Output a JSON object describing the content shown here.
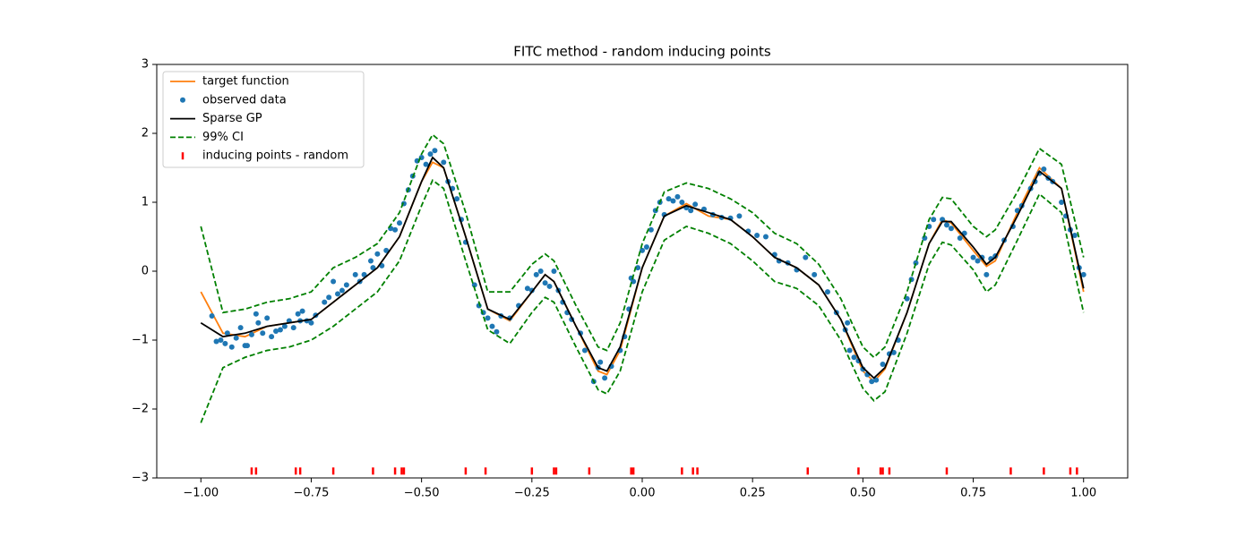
{
  "chart_data": {
    "type": "line",
    "title": "FITC method - random inducing points",
    "xlim": [
      -1.1,
      1.1
    ],
    "ylim": [
      -3,
      3
    ],
    "xticks": [
      {
        "value": -1,
        "label": "−1.00"
      },
      {
        "value": -0.75,
        "label": "−0.75"
      },
      {
        "value": -0.5,
        "label": "−0.50"
      },
      {
        "value": -0.25,
        "label": "−0.25"
      },
      {
        "value": 0,
        "label": "0.00"
      },
      {
        "value": 0.25,
        "label": "0.25"
      },
      {
        "value": 0.5,
        "label": "0.50"
      },
      {
        "value": 0.75,
        "label": "0.75"
      },
      {
        "value": 1,
        "label": "1.00"
      }
    ],
    "yticks": [
      {
        "value": -3,
        "label": "−3"
      },
      {
        "value": -2,
        "label": "−2"
      },
      {
        "value": -1,
        "label": "−1"
      },
      0,
      1,
      2,
      3
    ],
    "legend": "upper left",
    "x": [
      -1,
      -0.95,
      -0.9,
      -0.85,
      -0.8,
      -0.75,
      -0.7,
      -0.65,
      -0.6,
      -0.55,
      -0.5,
      -0.475,
      -0.45,
      -0.4,
      -0.35,
      -0.3,
      -0.25,
      -0.22,
      -0.2,
      -0.15,
      -0.1,
      -0.08,
      -0.05,
      0,
      0.05,
      0.1,
      0.15,
      0.2,
      0.25,
      0.3,
      0.35,
      0.4,
      0.45,
      0.5,
      0.525,
      0.55,
      0.6,
      0.65,
      0.68,
      0.7,
      0.75,
      0.78,
      0.8,
      0.85,
      0.9,
      0.95,
      1.0
    ],
    "series": [
      {
        "name": "target function",
        "type": "line",
        "color": "#ff7f0e",
        "values": [
          -0.3,
          -0.9,
          -0.95,
          -0.8,
          -0.75,
          -0.7,
          -0.45,
          -0.2,
          0.05,
          0.5,
          1.3,
          1.58,
          1.5,
          0.5,
          -0.55,
          -0.72,
          -0.3,
          -0.05,
          -0.15,
          -0.8,
          -1.45,
          -1.5,
          -1.15,
          0.05,
          0.8,
          0.98,
          0.8,
          0.75,
          0.5,
          0.2,
          0.05,
          -0.2,
          -0.7,
          -1.45,
          -1.6,
          -1.42,
          -0.6,
          0.4,
          0.75,
          0.7,
          0.3,
          0.07,
          0.15,
          0.85,
          1.5,
          1.2,
          -0.3
        ]
      },
      {
        "name": "observed data",
        "type": "scatter",
        "color": "#1f77b4",
        "x": [
          -0.975,
          -0.965,
          -0.955,
          -0.945,
          -0.94,
          -0.93,
          -0.92,
          -0.91,
          -0.9,
          -0.895,
          -0.885,
          -0.875,
          -0.87,
          -0.86,
          -0.85,
          -0.84,
          -0.83,
          -0.82,
          -0.81,
          -0.8,
          -0.79,
          -0.78,
          -0.775,
          -0.77,
          -0.76,
          -0.75,
          -0.74,
          -0.72,
          -0.71,
          -0.7,
          -0.69,
          -0.68,
          -0.67,
          -0.65,
          -0.64,
          -0.63,
          -0.615,
          -0.61,
          -0.6,
          -0.59,
          -0.58,
          -0.57,
          -0.56,
          -0.55,
          -0.54,
          -0.53,
          -0.52,
          -0.51,
          -0.5,
          -0.49,
          -0.48,
          -0.47,
          -0.45,
          -0.44,
          -0.43,
          -0.42,
          -0.41,
          -0.4,
          -0.38,
          -0.37,
          -0.36,
          -0.35,
          -0.34,
          -0.33,
          -0.32,
          -0.3,
          -0.28,
          -0.26,
          -0.25,
          -0.24,
          -0.23,
          -0.22,
          -0.21,
          -0.2,
          -0.19,
          -0.18,
          -0.17,
          -0.16,
          -0.14,
          -0.13,
          -0.11,
          -0.1,
          -0.095,
          -0.085,
          -0.07,
          -0.05,
          -0.04,
          -0.03,
          -0.025,
          -0.02,
          -0.01,
          0.0,
          0.01,
          0.02,
          0.03,
          0.04,
          0.05,
          0.06,
          0.07,
          0.08,
          0.09,
          0.1,
          0.11,
          0.12,
          0.14,
          0.16,
          0.18,
          0.2,
          0.22,
          0.24,
          0.26,
          0.28,
          0.3,
          0.31,
          0.33,
          0.35,
          0.37,
          0.39,
          0.42,
          0.44,
          0.46,
          0.465,
          0.47,
          0.48,
          0.49,
          0.5,
          0.51,
          0.52,
          0.53,
          0.545,
          0.56,
          0.57,
          0.58,
          0.6,
          0.61,
          0.62,
          0.64,
          0.65,
          0.66,
          0.68,
          0.69,
          0.7,
          0.72,
          0.73,
          0.75,
          0.76,
          0.77,
          0.78,
          0.79,
          0.8,
          0.82,
          0.84,
          0.85,
          0.86,
          0.88,
          0.89,
          0.9,
          0.91,
          0.92,
          0.93,
          0.95,
          0.96,
          0.97,
          0.98,
          0.99,
          1.0
        ],
        "values": [
          -0.65,
          -1.02,
          -1.0,
          -1.05,
          -0.9,
          -1.1,
          -0.97,
          -0.82,
          -1.08,
          -1.08,
          -0.92,
          -0.62,
          -0.75,
          -0.9,
          -0.68,
          -0.95,
          -0.87,
          -0.85,
          -0.8,
          -0.72,
          -0.82,
          -0.62,
          -0.72,
          -0.58,
          -0.72,
          -0.75,
          -0.64,
          -0.45,
          -0.38,
          -0.15,
          -0.33,
          -0.28,
          -0.2,
          -0.05,
          -0.15,
          -0.05,
          0.15,
          0.05,
          0.25,
          0.08,
          0.3,
          0.62,
          0.6,
          0.7,
          0.98,
          1.18,
          1.38,
          1.6,
          1.65,
          1.55,
          1.7,
          1.75,
          1.58,
          1.3,
          1.2,
          1.05,
          0.75,
          0.42,
          -0.2,
          -0.5,
          -0.6,
          -0.68,
          -0.8,
          -0.88,
          -0.65,
          -0.68,
          -0.5,
          -0.25,
          -0.28,
          -0.05,
          0.0,
          -0.17,
          -0.22,
          0.0,
          -0.28,
          -0.45,
          -0.6,
          -0.7,
          -0.9,
          -1.15,
          -1.6,
          -1.4,
          -1.32,
          -1.55,
          -1.38,
          -1.15,
          -0.95,
          -0.55,
          -0.1,
          -0.15,
          0.05,
          0.3,
          0.35,
          0.6,
          0.88,
          1.0,
          0.82,
          1.05,
          1.02,
          1.08,
          1.0,
          0.92,
          0.88,
          0.97,
          0.9,
          0.82,
          0.78,
          0.77,
          0.8,
          0.58,
          0.52,
          0.5,
          0.24,
          0.15,
          0.12,
          0.02,
          0.2,
          -0.05,
          -0.3,
          -0.6,
          -0.85,
          -0.75,
          -1.15,
          -1.25,
          -1.3,
          -1.42,
          -1.5,
          -1.6,
          -1.58,
          -1.35,
          -1.2,
          -1.18,
          -1.0,
          -0.4,
          -0.12,
          0.12,
          0.48,
          0.65,
          0.75,
          0.75,
          0.67,
          0.62,
          0.48,
          0.55,
          0.2,
          0.15,
          0.2,
          -0.05,
          0.18,
          0.22,
          0.45,
          0.65,
          0.88,
          0.95,
          1.2,
          1.3,
          1.42,
          1.48,
          1.35,
          1.3,
          1.0,
          0.8,
          0.6,
          0.52,
          0.05,
          -0.05
        ]
      },
      {
        "name": "Sparse GP",
        "type": "line",
        "color": "#000000",
        "values": [
          -0.75,
          -0.95,
          -0.9,
          -0.8,
          -0.75,
          -0.7,
          -0.45,
          -0.2,
          0.05,
          0.5,
          1.3,
          1.65,
          1.5,
          0.5,
          -0.55,
          -0.7,
          -0.3,
          -0.05,
          -0.15,
          -0.8,
          -1.4,
          -1.45,
          -1.1,
          0.05,
          0.8,
          0.95,
          0.85,
          0.75,
          0.5,
          0.2,
          0.05,
          -0.2,
          -0.7,
          -1.4,
          -1.55,
          -1.4,
          -0.6,
          0.4,
          0.72,
          0.72,
          0.35,
          0.1,
          0.2,
          0.8,
          1.45,
          1.2,
          -0.25
        ]
      },
      {
        "name": "99% CI",
        "type": "band",
        "color": "#008000",
        "style": "dashed",
        "upper": [
          0.65,
          -0.6,
          -0.55,
          -0.45,
          -0.4,
          -0.3,
          0.05,
          0.2,
          0.4,
          0.85,
          1.7,
          1.98,
          1.85,
          0.85,
          -0.3,
          -0.3,
          0.1,
          0.25,
          0.15,
          -0.5,
          -1.1,
          -1.15,
          -0.75,
          0.4,
          1.15,
          1.28,
          1.2,
          1.05,
          0.85,
          0.55,
          0.4,
          0.1,
          -0.4,
          -1.1,
          -1.25,
          -1.1,
          -0.3,
          0.75,
          1.07,
          1.05,
          0.65,
          0.5,
          0.6,
          1.15,
          1.78,
          1.55,
          0.2
        ],
        "lower": [
          -2.2,
          -1.4,
          -1.25,
          -1.15,
          -1.1,
          -1.0,
          -0.8,
          -0.55,
          -0.3,
          0.15,
          0.95,
          1.32,
          1.2,
          0.15,
          -0.85,
          -1.05,
          -0.6,
          -0.38,
          -0.45,
          -1.1,
          -1.72,
          -1.78,
          -1.45,
          -0.3,
          0.45,
          0.65,
          0.55,
          0.4,
          0.15,
          -0.15,
          -0.25,
          -0.5,
          -1.0,
          -1.7,
          -1.88,
          -1.75,
          -0.9,
          0.1,
          0.42,
          0.38,
          0.02,
          -0.3,
          -0.2,
          0.45,
          1.12,
          0.85,
          -0.6
        ]
      },
      {
        "name": "inducing points - random",
        "type": "rug",
        "color": "#ff0000",
        "x": [
          -0.885,
          -0.875,
          -0.785,
          -0.775,
          -0.7,
          -0.61,
          -0.56,
          -0.545,
          -0.54,
          -0.4,
          -0.355,
          -0.25,
          -0.2,
          -0.195,
          -0.12,
          -0.025,
          -0.02,
          0.09,
          0.115,
          0.125,
          0.375,
          0.49,
          0.54,
          0.545,
          0.56,
          0.69,
          0.835,
          0.91,
          0.97,
          0.985
        ],
        "values": [
          -2.9,
          -2.9,
          -2.9,
          -2.9,
          -2.9,
          -2.9,
          -2.9,
          -2.9,
          -2.9,
          -2.9,
          -2.9,
          -2.9,
          -2.9,
          -2.9,
          -2.9,
          -2.9,
          -2.9,
          -2.9,
          -2.9,
          -2.9,
          -2.9,
          -2.9,
          -2.9,
          -2.9,
          -2.9,
          -2.9,
          -2.9,
          -2.9,
          -2.9,
          -2.9
        ]
      }
    ]
  }
}
